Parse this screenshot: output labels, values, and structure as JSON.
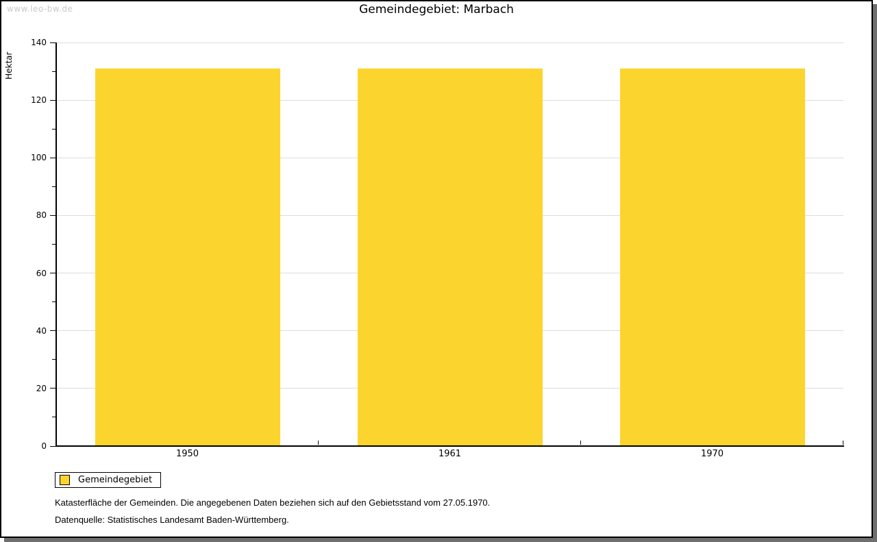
{
  "watermark": "www.leo-bw.de",
  "header": {
    "title": "Gemeindegebiet: Marbach"
  },
  "chart_data": {
    "type": "bar",
    "title": "Gemeindegebiet: Marbach",
    "categories": [
      "1950",
      "1961",
      "1970"
    ],
    "series": [
      {
        "name": "Gemeindegebiet",
        "values": [
          131,
          131,
          131
        ]
      }
    ],
    "xlabel": "",
    "ylabel": "Hektar",
    "ylim": [
      0,
      140
    ],
    "ytick_major": 20,
    "ytick_minor": 10,
    "grid": true,
    "legend_position": "bottom-left",
    "bar_color": "#fcd42e",
    "bar_width_frac": 0.705
  },
  "legend": {
    "items": [
      {
        "label": "Gemeindegebiet",
        "color": "#fcd42e"
      }
    ]
  },
  "footnotes": [
    "Katasterfläche der Gemeinden. Die angegebenen Daten beziehen sich auf den Gebietsstand vom 27.05.1970.",
    "Datenquelle: Statistisches Landesamt Baden-Württemberg."
  ],
  "colors": {
    "bar": "#fcd42e",
    "grid": "#dcdcdc",
    "axis": "#000000",
    "watermark": "#c9c9c9",
    "frame_border": "#000000",
    "frame_shadow": "#6f6f6f",
    "background": "#ffffff"
  }
}
